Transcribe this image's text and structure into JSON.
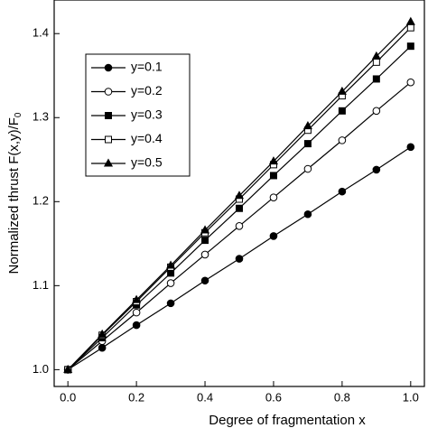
{
  "chart_data": {
    "type": "line",
    "ylabel": "Normalized thrust F(x,y)/F",
    "ylabel_subscript": "0",
    "xlabel": "Degree of fragmentation x",
    "x": [
      0,
      0.1,
      0.2,
      0.3,
      0.4,
      0.5,
      0.6,
      0.7,
      0.8,
      0.9,
      1.0
    ],
    "series": [
      {
        "name": "y=0.1",
        "color": "#000000",
        "marker": "circle",
        "filled": true,
        "values": [
          1.0,
          1.026,
          1.053,
          1.079,
          1.106,
          1.132,
          1.159,
          1.185,
          1.212,
          1.238,
          1.265
        ]
      },
      {
        "name": "y=0.2",
        "color": "#000000",
        "marker": "circle",
        "filled": false,
        "values": [
          1.0,
          1.034,
          1.068,
          1.103,
          1.137,
          1.171,
          1.205,
          1.239,
          1.273,
          1.308,
          1.342
        ]
      },
      {
        "name": "y=0.3",
        "color": "#000000",
        "marker": "square",
        "filled": true,
        "values": [
          1.0,
          1.038,
          1.077,
          1.115,
          1.154,
          1.192,
          1.231,
          1.269,
          1.308,
          1.346,
          1.385
        ]
      },
      {
        "name": "y=0.4",
        "color": "#000000",
        "marker": "square",
        "filled": false,
        "values": [
          1.0,
          1.041,
          1.081,
          1.122,
          1.163,
          1.203,
          1.244,
          1.285,
          1.326,
          1.366,
          1.407
        ]
      },
      {
        "name": "y=0.5",
        "color": "#000000",
        "marker": "triangle",
        "filled": true,
        "values": [
          1.0,
          1.042,
          1.083,
          1.124,
          1.166,
          1.207,
          1.248,
          1.29,
          1.331,
          1.373,
          1.414
        ]
      }
    ],
    "xlim": [
      -0.04,
      1.04
    ],
    "ylim": [
      0.98,
      1.44
    ],
    "xticks": [
      {
        "value": 0,
        "label": "0.0"
      },
      {
        "value": 0.2,
        "label": "0.2"
      },
      {
        "value": 0.4,
        "label": "0.4"
      },
      {
        "value": 0.6,
        "label": "0.6"
      },
      {
        "value": 0.8,
        "label": "0.8"
      },
      {
        "value": 1.0,
        "label": "1.0"
      }
    ],
    "yticks": [
      {
        "value": 1.0,
        "label": "1.0"
      },
      {
        "value": 1.1,
        "label": "1.1"
      },
      {
        "value": 1.2,
        "label": "1.2"
      },
      {
        "value": 1.3,
        "label": "1.3"
      },
      {
        "value": 1.4,
        "label": "1.4"
      }
    ],
    "legend": "upper-left"
  }
}
